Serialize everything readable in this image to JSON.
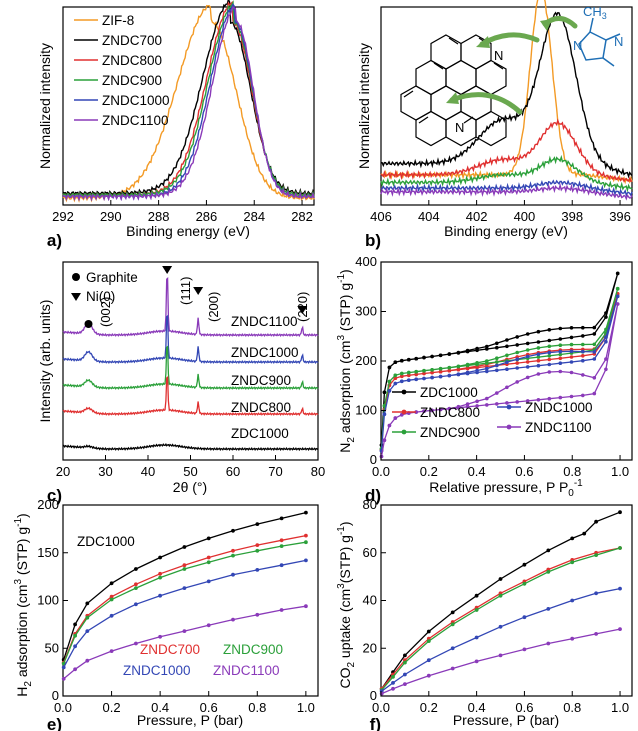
{
  "chart_data": [
    {
      "panel": "a)",
      "type": "line",
      "xlabel": "Binding energy (eV)",
      "ylabel": "Normalized intensity",
      "xlim": [
        292,
        281.5
      ],
      "xticks": [
        292,
        290,
        288,
        286,
        284,
        282
      ],
      "ylim": [
        0,
        1.1
      ],
      "legend_position": "top-left",
      "series": [
        {
          "name": "ZIF-8",
          "color": "#f39a25",
          "peak": 285.8,
          "width": 1.05,
          "base": 0.12,
          "tail": 0.02
        },
        {
          "name": "ZNDC700",
          "color": "#000000",
          "peak": 285.0,
          "width": 0.85,
          "base": 0.15,
          "tail": 0.05
        },
        {
          "name": "ZNDC800",
          "color": "#e03030",
          "peak": 284.9,
          "width": 0.8,
          "base": 0.14,
          "tail": 0.04
        },
        {
          "name": "ZNDC900",
          "color": "#2ba03a",
          "peak": 284.85,
          "width": 0.78,
          "base": 0.13,
          "tail": 0.04
        },
        {
          "name": "ZNDC1000",
          "color": "#3347b5",
          "peak": 284.8,
          "width": 0.75,
          "base": 0.12,
          "tail": 0.03
        },
        {
          "name": "ZNDC1100",
          "color": "#8a3ab9",
          "peak": 284.75,
          "width": 0.72,
          "base": 0.11,
          "tail": 0.03
        }
      ]
    },
    {
      "panel": "b)",
      "type": "line",
      "xlabel": "Binding energy (eV)",
      "ylabel": "Normalized intensity",
      "xlim": [
        406,
        395.5
      ],
      "xticks": [
        406,
        404,
        402,
        400,
        398,
        396
      ],
      "annotations": [
        "N",
        "N",
        "N",
        "CH3"
      ],
      "series": [
        {
          "name": "ZIF-8",
          "color": "#f39a25",
          "peaks": [
            {
              "x": 399.3,
              "h": 0.98,
              "w": 0.45
            }
          ],
          "base": 0.16
        },
        {
          "name": "ZNDC700",
          "color": "#000000",
          "peaks": [
            {
              "x": 398.6,
              "h": 0.78,
              "w": 0.75
            },
            {
              "x": 400.9,
              "h": 0.23,
              "w": 1.0
            }
          ],
          "base": 0.22
        },
        {
          "name": "ZNDC800",
          "color": "#e03030",
          "peaks": [
            {
              "x": 398.6,
              "h": 0.27,
              "w": 0.75
            },
            {
              "x": 400.9,
              "h": 0.08,
              "w": 1.0
            }
          ],
          "base": 0.16
        },
        {
          "name": "ZNDC900",
          "color": "#2ba03a",
          "peaks": [
            {
              "x": 398.6,
              "h": 0.12,
              "w": 0.75
            },
            {
              "x": 400.9,
              "h": 0.04,
              "w": 1.0
            }
          ],
          "base": 0.12
        },
        {
          "name": "ZNDC1000",
          "color": "#3347b5",
          "peaks": [
            {
              "x": 398.6,
              "h": 0.03,
              "w": 0.8
            }
          ],
          "base": 0.09
        },
        {
          "name": "ZNDC1100",
          "color": "#8a3ab9",
          "peaks": [
            {
              "x": 398.6,
              "h": 0.02,
              "w": 0.8
            }
          ],
          "base": 0.07
        }
      ]
    },
    {
      "panel": "c)",
      "type": "line",
      "xlabel": "2θ (°)",
      "ylabel": "Intensity (arb. units)",
      "xlim": [
        20,
        80
      ],
      "xticks": [
        20,
        30,
        40,
        50,
        60,
        70,
        80
      ],
      "legend": [
        {
          "marker": "●",
          "label": "Graphite"
        },
        {
          "marker": "▼",
          "label": "Ni(0)"
        }
      ],
      "peak_labels": [
        {
          "x": 26.0,
          "marker": "●",
          "text": "(002)"
        },
        {
          "x": 44.5,
          "marker": "▼",
          "text": "(111)"
        },
        {
          "x": 51.8,
          "marker": "▼",
          "text": "(200)"
        },
        {
          "x": 76.3,
          "marker": "▼",
          "text": "(220)"
        }
      ],
      "series": [
        {
          "name": "ZNDC1100",
          "color": "#8a3ab9",
          "offset": 4,
          "ni": 1.0,
          "graphite": 0.35
        },
        {
          "name": "ZNDC1000",
          "color": "#3347b5",
          "offset": 3,
          "ni": 0.9,
          "graphite": 0.3
        },
        {
          "name": "ZNDC900",
          "color": "#2ba03a",
          "offset": 2,
          "ni": 0.8,
          "graphite": 0.22
        },
        {
          "name": "ZNDC800",
          "color": "#e03030",
          "offset": 1,
          "ni": 0.7,
          "graphite": 0.15
        },
        {
          "name": "ZDC1000",
          "color": "#000000",
          "offset": 0,
          "ni": 0.0,
          "graphite": 0.05
        }
      ]
    },
    {
      "panel": "d)",
      "type": "line",
      "xlabel": "Relative pressure, P P0-1",
      "ylabel": "N2 adsorption (cm3 (STP) g-1)",
      "xlim": [
        0,
        1.05
      ],
      "xticks": [
        0.0,
        0.2,
        0.4,
        0.6,
        0.8,
        1.0
      ],
      "ylim": [
        0,
        400
      ],
      "yticks": [
        0,
        100,
        200,
        300,
        400
      ],
      "legend_position": "bottom",
      "series": [
        {
          "name": "ZDC1000",
          "color": "#000000",
          "a": 195,
          "b": 55,
          "k": 0.012,
          "hyst": 18,
          "top": 370
        },
        {
          "name": "ZNDC800",
          "color": "#e03030",
          "a": 165,
          "b": 45,
          "k": 0.015,
          "hyst": 14,
          "top": 330
        },
        {
          "name": "ZNDC900",
          "color": "#2ba03a",
          "a": 170,
          "b": 48,
          "k": 0.014,
          "hyst": 16,
          "top": 340
        },
        {
          "name": "ZNDC1000",
          "color": "#3347b5",
          "a": 155,
          "b": 45,
          "k": 0.016,
          "hyst": 20,
          "top": 325
        },
        {
          "name": "ZNDC1100",
          "color": "#8a3ab9",
          "a": 90,
          "b": 40,
          "k": 0.025,
          "hyst": 45,
          "top": 310
        }
      ]
    },
    {
      "panel": "e)",
      "type": "line",
      "xlabel": "Pressure, P (bar)",
      "ylabel": "H2 adsorption (cm3 (STP) g-1)",
      "xlim": [
        0,
        1.05
      ],
      "xticks": [
        0.0,
        0.2,
        0.4,
        0.6,
        0.8,
        1.0
      ],
      "ylim": [
        0,
        200
      ],
      "yticks": [
        0,
        50,
        100,
        150,
        200
      ],
      "series": [
        {
          "name": "ZDC1000",
          "color": "#000000",
          "values": [
            [
              0.003,
              38
            ],
            [
              0.05,
              75
            ],
            [
              0.1,
              97
            ],
            [
              0.2,
              118
            ],
            [
              0.3,
              133
            ],
            [
              0.4,
              145
            ],
            [
              0.5,
              156
            ],
            [
              0.6,
              165
            ],
            [
              0.7,
              173
            ],
            [
              0.8,
              180
            ],
            [
              0.9,
              186
            ],
            [
              1.0,
              192
            ]
          ]
        },
        {
          "name": "ZNDC700",
          "color": "#e03030",
          "values": [
            [
              0.003,
              35
            ],
            [
              0.05,
              65
            ],
            [
              0.1,
              84
            ],
            [
              0.2,
              104
            ],
            [
              0.3,
              117
            ],
            [
              0.4,
              128
            ],
            [
              0.5,
              137
            ],
            [
              0.6,
              145
            ],
            [
              0.7,
              152
            ],
            [
              0.8,
              158
            ],
            [
              0.9,
              163
            ],
            [
              1.0,
              168
            ]
          ]
        },
        {
          "name": "ZNDC900",
          "color": "#2ba03a",
          "values": [
            [
              0.003,
              34
            ],
            [
              0.05,
              63
            ],
            [
              0.1,
              82
            ],
            [
              0.2,
              101
            ],
            [
              0.3,
              113
            ],
            [
              0.4,
              124
            ],
            [
              0.5,
              133
            ],
            [
              0.6,
              140
            ],
            [
              0.7,
              147
            ],
            [
              0.8,
              152
            ],
            [
              0.9,
              157
            ],
            [
              1.0,
              161
            ]
          ]
        },
        {
          "name": "ZNDC1000",
          "color": "#3347b5",
          "values": [
            [
              0.003,
              30
            ],
            [
              0.05,
              52
            ],
            [
              0.1,
              68
            ],
            [
              0.2,
              84
            ],
            [
              0.3,
              96
            ],
            [
              0.4,
              105
            ],
            [
              0.5,
              113
            ],
            [
              0.6,
              120
            ],
            [
              0.7,
              127
            ],
            [
              0.8,
              132
            ],
            [
              0.9,
              137
            ],
            [
              1.0,
              142
            ]
          ]
        },
        {
          "name": "ZNDC1100",
          "color": "#8a3ab9",
          "values": [
            [
              0.003,
              18
            ],
            [
              0.05,
              28
            ],
            [
              0.1,
              37
            ],
            [
              0.2,
              47
            ],
            [
              0.3,
              55
            ],
            [
              0.4,
              62
            ],
            [
              0.5,
              68
            ],
            [
              0.6,
              74
            ],
            [
              0.7,
              80
            ],
            [
              0.8,
              85
            ],
            [
              0.9,
              90
            ],
            [
              1.0,
              94
            ]
          ]
        }
      ]
    },
    {
      "panel": "f)",
      "type": "line",
      "xlabel": "Pressure, P (bar)",
      "ylabel": "CO2 uptake (cm3(STP) g-1)",
      "xlim": [
        0,
        1.05
      ],
      "xticks": [
        0.0,
        0.2,
        0.4,
        0.6,
        0.8,
        1.0
      ],
      "ylim": [
        0,
        80
      ],
      "yticks": [
        0,
        20,
        40,
        60,
        80
      ],
      "series": [
        {
          "name": "ZDC1000",
          "color": "#000000",
          "values": [
            [
              0.003,
              3
            ],
            [
              0.05,
              10
            ],
            [
              0.1,
              17
            ],
            [
              0.2,
              27
            ],
            [
              0.3,
              35
            ],
            [
              0.4,
              42
            ],
            [
              0.5,
              49
            ],
            [
              0.6,
              55
            ],
            [
              0.7,
              61
            ],
            [
              0.8,
              66
            ],
            [
              0.85,
              68
            ],
            [
              0.9,
              73
            ],
            [
              1.0,
              77
            ]
          ]
        },
        {
          "name": "ZNDC700",
          "color": "#e03030",
          "values": [
            [
              0.003,
              3
            ],
            [
              0.05,
              9
            ],
            [
              0.1,
              15
            ],
            [
              0.2,
              24
            ],
            [
              0.3,
              31
            ],
            [
              0.4,
              37
            ],
            [
              0.5,
              43
            ],
            [
              0.6,
              48
            ],
            [
              0.7,
              53
            ],
            [
              0.8,
              57
            ],
            [
              0.9,
              60
            ],
            [
              1.0,
              62
            ]
          ]
        },
        {
          "name": "ZNDC900",
          "color": "#2ba03a",
          "values": [
            [
              0.003,
              2.5
            ],
            [
              0.05,
              8
            ],
            [
              0.1,
              14
            ],
            [
              0.2,
              23
            ],
            [
              0.3,
              30
            ],
            [
              0.4,
              36
            ],
            [
              0.5,
              42
            ],
            [
              0.6,
              47
            ],
            [
              0.7,
              52
            ],
            [
              0.8,
              56
            ],
            [
              0.9,
              59
            ],
            [
              1.0,
              62
            ]
          ]
        },
        {
          "name": "ZNDC1000",
          "color": "#3347b5",
          "values": [
            [
              0.003,
              2
            ],
            [
              0.05,
              5.5
            ],
            [
              0.1,
              9
            ],
            [
              0.2,
              15
            ],
            [
              0.3,
              20
            ],
            [
              0.4,
              24.5
            ],
            [
              0.5,
              29
            ],
            [
              0.6,
              33
            ],
            [
              0.7,
              36.5
            ],
            [
              0.8,
              40
            ],
            [
              0.9,
              43
            ],
            [
              1.0,
              45
            ]
          ]
        },
        {
          "name": "ZNDC1100",
          "color": "#8a3ab9",
          "values": [
            [
              0.003,
              1
            ],
            [
              0.05,
              3
            ],
            [
              0.1,
              5
            ],
            [
              0.2,
              8.5
            ],
            [
              0.3,
              11.5
            ],
            [
              0.4,
              14.5
            ],
            [
              0.5,
              17
            ],
            [
              0.6,
              19.5
            ],
            [
              0.7,
              22
            ],
            [
              0.8,
              24
            ],
            [
              0.9,
              26
            ],
            [
              1.0,
              28
            ]
          ]
        }
      ]
    }
  ],
  "labels": {
    "a": {
      "letter": "a)",
      "xtitle": "Binding energy (eV)",
      "ytitle": "Normalized intensity",
      "legend": [
        "ZIF-8",
        "ZNDC700",
        "ZNDC800",
        "ZNDC900",
        "ZNDC1000",
        "ZNDC1100"
      ]
    },
    "b": {
      "letter": "b)",
      "xtitle": "Binding energy (eV)",
      "ytitle": "Normalized intensity"
    },
    "c": {
      "letter": "c)",
      "xtitle": "2θ (°)",
      "ytitle": "Intensity (arb. units)",
      "legend_graphite": "Graphite",
      "legend_ni": "Ni(0)",
      "p002": "(002)",
      "p111": "(111)",
      "p200": "(200)",
      "p220": "(220)",
      "series": [
        "ZNDC1100",
        "ZNDC1000",
        "ZNDC900",
        "ZNDC800",
        "ZDC1000"
      ]
    },
    "d": {
      "letter": "d)",
      "xtitle_main": "Relative pressure, P P",
      "xtitle_sub": "0",
      "xtitle_sup": "-1",
      "ytitle_a": "N",
      "ytitle_sub": "2",
      "ytitle_b": " adsorption (cm",
      "ytitle_sup1": "3",
      "ytitle_c": " (STP) g",
      "ytitle_sup2": "-1",
      "ytitle_d": ")",
      "legend": [
        "ZDC1000",
        "ZNDC800",
        "ZNDC900",
        "ZNDC1000",
        "ZNDC1100"
      ]
    },
    "e": {
      "letter": "e)",
      "xtitle": "Pressure, P (bar)",
      "ytitle_a": "H",
      "ytitle_sub": "2",
      "ytitle_b": " adsorption (cm",
      "ytitle_sup1": "3",
      "ytitle_c": " (STP) g",
      "ytitle_sup2": "-1",
      "ytitle_d": ")",
      "zdc": "ZDC1000",
      "l700": "ZNDC700",
      "l900": "ZNDC900",
      "l1000": "ZNDC1000",
      "l1100": "ZNDC1100"
    },
    "f": {
      "letter": "f)",
      "xtitle": "Pressure, P (bar)",
      "ytitle_a": "CO",
      "ytitle_sub": "2",
      "ytitle_b": " uptake (cm",
      "ytitle_sup1": "3",
      "ytitle_c": "(STP) g",
      "ytitle_sup2": "-1",
      "ytitle_d": ")"
    },
    "mol": {
      "n1": "N",
      "n2": "N",
      "n3": "N",
      "n4": "N",
      "ch3": "CH",
      "ch3_sub": "3"
    }
  },
  "colors": {
    "zif8": "#f39a25",
    "black": "#000000",
    "red": "#e03030",
    "green": "#2ba03a",
    "blue": "#3347b5",
    "purple": "#8a3ab9",
    "arrow": "#6aa84f",
    "ring": "#1f6fb5"
  }
}
